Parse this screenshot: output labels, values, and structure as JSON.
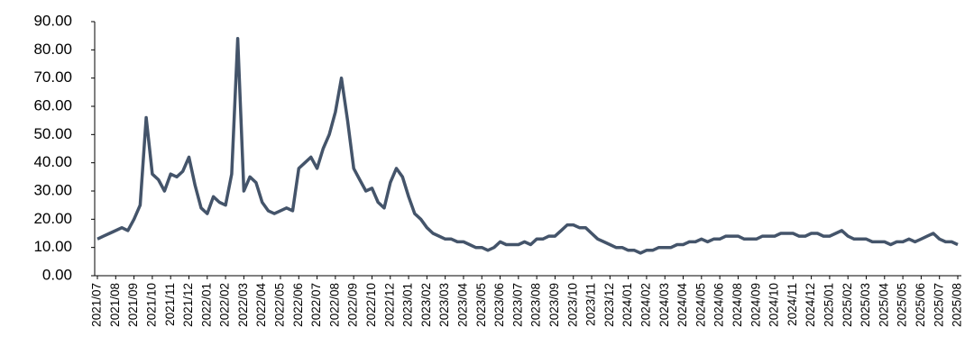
{
  "chart_data": {
    "type": "line",
    "categories": [
      "2021/07",
      null,
      null,
      "2021/08",
      null,
      null,
      "2021/09",
      null,
      null,
      "2021/10",
      null,
      null,
      "2021/11",
      null,
      null,
      "2021/12",
      null,
      null,
      "2022/01",
      null,
      null,
      "2022/02",
      null,
      null,
      "2022/03",
      null,
      null,
      "2022/04",
      null,
      null,
      "2022/05",
      null,
      null,
      "2022/06",
      null,
      null,
      "2022/07",
      null,
      null,
      "2022/08",
      null,
      null,
      "2022/09",
      null,
      null,
      "2022/10",
      null,
      null,
      "2022/12",
      null,
      null,
      "2023/01",
      null,
      null,
      "2023/02",
      null,
      null,
      "2023/03",
      null,
      null,
      "2023/04",
      null,
      null,
      "2023/05",
      null,
      null,
      "2023/06",
      null,
      null,
      "2023/07",
      null,
      null,
      "2023/08",
      null,
      null,
      "2023/09",
      null,
      null,
      "2023/10",
      null,
      null,
      "2023/11",
      null,
      null,
      "2023/12",
      null,
      null,
      "2024/01",
      null,
      null,
      "2024/02",
      null,
      null,
      "2024/03",
      null,
      null,
      "2024/04",
      null,
      null,
      "2024/05",
      null,
      null,
      "2024/06",
      null,
      null,
      "2024/08",
      null,
      null,
      "2024/09",
      null,
      null,
      "2024/10",
      null,
      null,
      "2024/11",
      null,
      null,
      "2024/12",
      null,
      null,
      "2025/01",
      null,
      null,
      "2025/02",
      null,
      null,
      "2025/03",
      null,
      null,
      "2025/04",
      null,
      null,
      "2025/05",
      null,
      null,
      "2025/06",
      null,
      null,
      "2025/07",
      null,
      null,
      "2025/08"
    ],
    "values": [
      13,
      14,
      15,
      16,
      17,
      16,
      20,
      25,
      56,
      36,
      34,
      30,
      36,
      35,
      37,
      42,
      32,
      24,
      22,
      28,
      26,
      25,
      36,
      84,
      30,
      35,
      33,
      26,
      23,
      22,
      23,
      24,
      23,
      38,
      40,
      42,
      38,
      45,
      50,
      58,
      70,
      55,
      38,
      34,
      30,
      31,
      26,
      24,
      33,
      38,
      35,
      28,
      22,
      20,
      17,
      15,
      14,
      13,
      13,
      12,
      12,
      11,
      10,
      10,
      9,
      10,
      12,
      11,
      11,
      11,
      12,
      11,
      13,
      13,
      14,
      14,
      16,
      18,
      18,
      17,
      17,
      15,
      13,
      12,
      11,
      10,
      10,
      9,
      9,
      8,
      9,
      9,
      10,
      10,
      10,
      11,
      11,
      12,
      12,
      13,
      12,
      13,
      13,
      14,
      14,
      14,
      13,
      13,
      13,
      14,
      14,
      14,
      15,
      15,
      15,
      14,
      14,
      15,
      15,
      14,
      14,
      15,
      16,
      14,
      13,
      13,
      13,
      12,
      12,
      12,
      11,
      12,
      12,
      13,
      12,
      13,
      14,
      15,
      13,
      12,
      12,
      11
    ],
    "color": "#44546a",
    "ylim": [
      0,
      90
    ],
    "yticks": [
      {
        "value": 0,
        "label": "0.00"
      },
      {
        "value": 10,
        "label": "10.00"
      },
      {
        "value": 20,
        "label": "20.00"
      },
      {
        "value": 30,
        "label": "30.00"
      },
      {
        "value": 40,
        "label": "40.00"
      },
      {
        "value": 50,
        "label": "50.00"
      },
      {
        "value": 60,
        "label": "60.00"
      },
      {
        "value": 70,
        "label": "70.00"
      },
      {
        "value": 80,
        "label": "80.00"
      },
      {
        "value": 90,
        "label": "90.00"
      }
    ]
  }
}
